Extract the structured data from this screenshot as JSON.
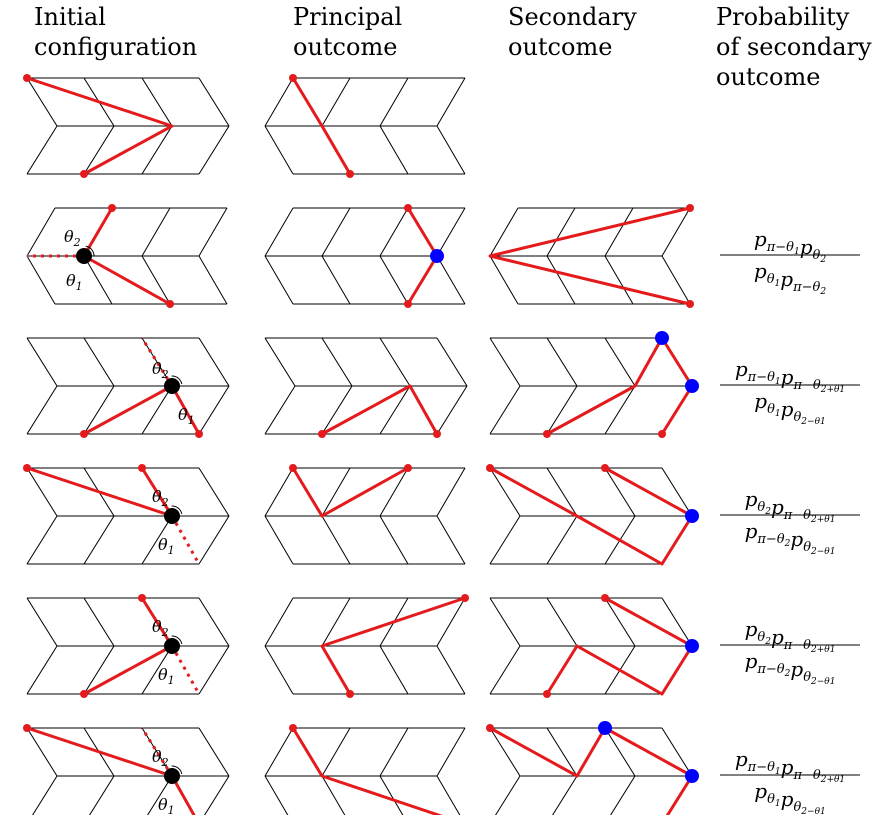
{
  "headers": {
    "col1": "Initial\nconfiguration",
    "col2": "Principal\noutcome",
    "col3": "Secondary\noutcome",
    "col4": "Probability\nof secondary\noutcome"
  },
  "angle_labels": {
    "theta1": "θ",
    "theta2": "θ",
    "sub1": "1",
    "sub2": "2"
  },
  "rows": [
    {
      "probability": null
    },
    {
      "probability": {
        "num": [
          [
            "p",
            "π−θ",
            "1"
          ],
          [
            "p",
            "θ",
            "2"
          ]
        ],
        "den": [
          [
            "p",
            "θ",
            "1"
          ],
          [
            "p",
            "π−θ",
            "2"
          ]
        ]
      }
    },
    {
      "probability": {
        "num": [
          [
            "p",
            "π−θ",
            "1"
          ],
          [
            "p",
            "π−θ",
            "2+θ1"
          ]
        ],
        "den": [
          [
            "p",
            "θ",
            "1"
          ],
          [
            "p",
            "θ",
            "2−θ1"
          ]
        ]
      }
    },
    {
      "probability": {
        "num": [
          [
            "p",
            "θ",
            "2"
          ],
          [
            "p",
            "π−θ",
            "2+θ1"
          ]
        ],
        "den": [
          [
            "p",
            "π−θ",
            "2"
          ],
          [
            "p",
            "θ",
            "2−θ1"
          ]
        ]
      }
    },
    {
      "probability": {
        "num": [
          [
            "p",
            "θ",
            "2"
          ],
          [
            "p",
            "π−θ",
            "2+θ1"
          ]
        ],
        "den": [
          [
            "p",
            "π−θ",
            "2"
          ],
          [
            "p",
            "θ",
            "2−θ1"
          ]
        ]
      }
    },
    {
      "probability": {
        "num": [
          [
            "p",
            "π−θ",
            "1"
          ],
          [
            "p",
            "π−θ",
            "2+θ1"
          ]
        ],
        "den": [
          [
            "p",
            "θ",
            "1"
          ],
          [
            "p",
            "θ",
            "2−θ1"
          ]
        ]
      }
    }
  ],
  "colors": {
    "path": "#e41a1c",
    "vertex": "#e41a1c",
    "pivot": "#000000",
    "marker": "#0000ff",
    "grid": "#000000"
  }
}
